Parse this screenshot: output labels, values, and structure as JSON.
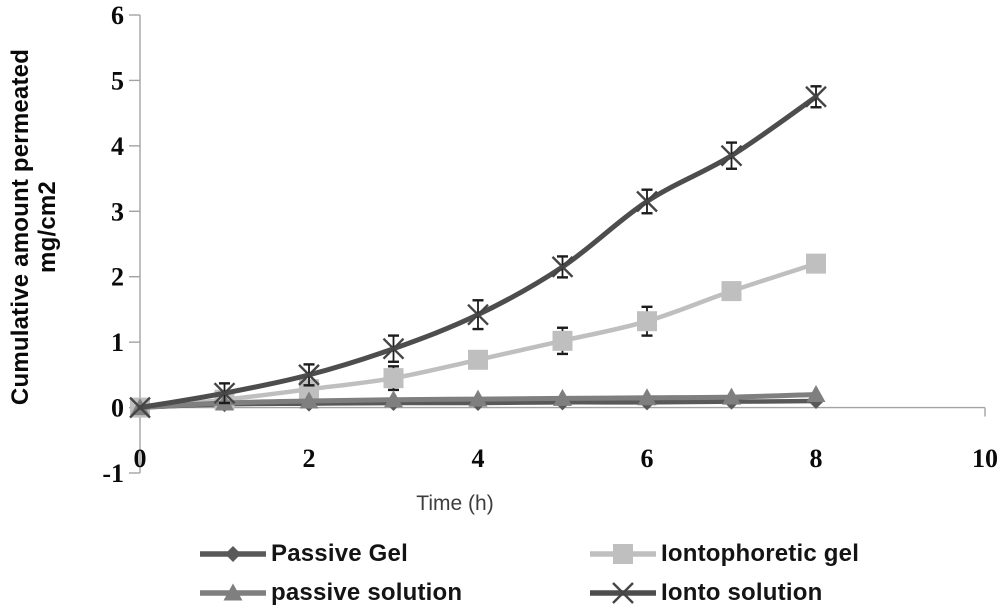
{
  "chart_data": {
    "type": "line",
    "title": "",
    "xlabel": "Time (h)",
    "ylabel": "Cumulative amount permeated mg/cm2",
    "ylabel_lines": [
      "Cumulative amount permeated",
      "mg/cm2"
    ],
    "x": [
      0,
      1,
      2,
      3,
      4,
      5,
      6,
      7,
      8
    ],
    "xlim": [
      0,
      10
    ],
    "ylim": [
      -1,
      6
    ],
    "xticks": [
      0,
      2,
      4,
      6,
      8,
      10
    ],
    "yticks": [
      6,
      5,
      4,
      3,
      2,
      1,
      0,
      -1
    ],
    "grid": false,
    "legend_position": "bottom",
    "axis_color": "#a3a3a3",
    "error_bar_color": "#1c1c1c",
    "series": [
      {
        "name": "Passive Gel",
        "marker": "diamond",
        "color": "#595959",
        "line_width": 4.5,
        "values": [
          0,
          0.05,
          0.06,
          0.07,
          0.07,
          0.08,
          0.08,
          0.09,
          0.1
        ],
        "errors": [
          0,
          0,
          0,
          0,
          0,
          0,
          0,
          0,
          0
        ]
      },
      {
        "name": "Iontophoretic gel",
        "marker": "square",
        "color": "#bfbfbf",
        "line_width": 4.5,
        "values": [
          0,
          0.12,
          0.28,
          0.45,
          0.73,
          1.02,
          1.32,
          1.78,
          2.2
        ],
        "errors": [
          0,
          0.05,
          0.06,
          0.18,
          0.08,
          0.2,
          0.22,
          0.1,
          0.08
        ]
      },
      {
        "name": "passive solution",
        "marker": "triangle",
        "color": "#7f7f7f",
        "line_width": 5,
        "values": [
          0,
          0.07,
          0.1,
          0.12,
          0.13,
          0.14,
          0.15,
          0.16,
          0.2
        ],
        "errors": [
          0,
          0,
          0,
          0,
          0,
          0,
          0,
          0,
          0
        ]
      },
      {
        "name": "Ionto solution",
        "marker": "x",
        "color": "#4d4d4d",
        "line_width": 5,
        "values": [
          0,
          0.22,
          0.5,
          0.9,
          1.42,
          2.15,
          3.15,
          3.85,
          4.75
        ],
        "errors": [
          0,
          0.15,
          0.16,
          0.2,
          0.22,
          0.16,
          0.18,
          0.2,
          0.16
        ]
      }
    ]
  }
}
